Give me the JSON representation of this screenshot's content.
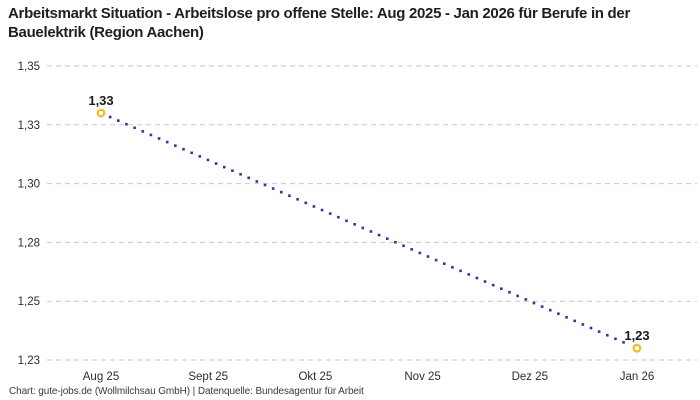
{
  "title": "Arbeitsmarkt Situation - Arbeitslose pro offene Stelle: Aug 2025 - Jan 2026 für Berufe in der Bauelektrik (Region Aachen)",
  "footer": "Chart: gute-jobs.de (Wollmilchsau GmbH) | Datenquelle: Bundesagentur für Arbeit",
  "colors": {
    "background": "#ffffff",
    "title_text": "#1f1f1f",
    "axis_text": "#2e2e2e",
    "gridline": "#c9c9c9",
    "line": "#2b3a97",
    "marker_ring": "#f1bd2b",
    "marker_fill": "#ffffff",
    "point_label_text": "#1b1b1b"
  },
  "chart_data": {
    "type": "line",
    "title": "Arbeitsmarkt Situation - Arbeitslose pro offene Stelle: Aug 2025 - Jan 2026 für Berufe in der Bauelektrik (Region Aachen)",
    "categories": [
      "Aug 25",
      "Sept 25",
      "Okt 25",
      "Nov 25",
      "Dez 25",
      "Jan 26"
    ],
    "series": [
      {
        "name": "Arbeitslose pro offene Stelle",
        "values": [
          1.33,
          null,
          null,
          null,
          null,
          1.23
        ],
        "point_labels": [
          "1,33",
          null,
          null,
          null,
          null,
          "1,23"
        ],
        "line_style": "dotted",
        "marker": "open-circle"
      }
    ],
    "ylim": [
      1.225,
      1.35
    ],
    "yticks": [
      1.35,
      1.325,
      1.3,
      1.275,
      1.25,
      1.225
    ],
    "ytick_labels": [
      "1,35",
      "1,33",
      "1,30",
      "1,28",
      "1,25",
      "1,23"
    ],
    "xlabel": "",
    "ylabel": "",
    "grid": "horizontal-dashed",
    "legend": "none"
  }
}
